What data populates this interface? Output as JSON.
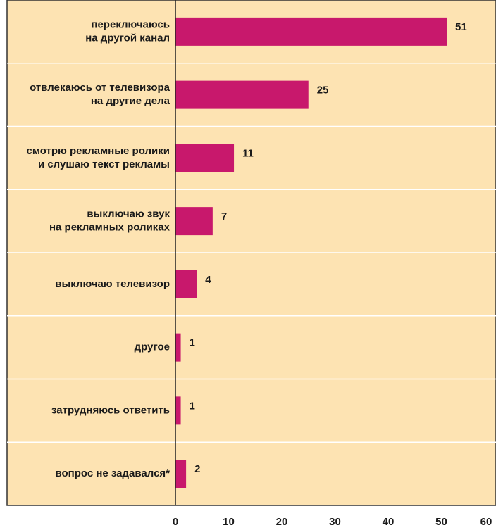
{
  "chart_data": {
    "type": "bar",
    "orientation": "horizontal",
    "categories": [
      "переключаюсь\nна другой канал",
      "отвлекаюсь от телевизора\nна другие дела",
      "смотрю рекламные ролики\nи слушаю текст рекламы",
      "выключаю звук\nна рекламных роликах",
      "выключаю телевизор",
      "другое",
      "затрудняюсь ответить",
      "вопрос не задавался*"
    ],
    "values": [
      51,
      25,
      11,
      7,
      4,
      1,
      1,
      2
    ],
    "color": "#c8186c",
    "xlim": [
      0,
      60
    ],
    "xticks": [
      0,
      10,
      20,
      30,
      40,
      50,
      60
    ]
  }
}
